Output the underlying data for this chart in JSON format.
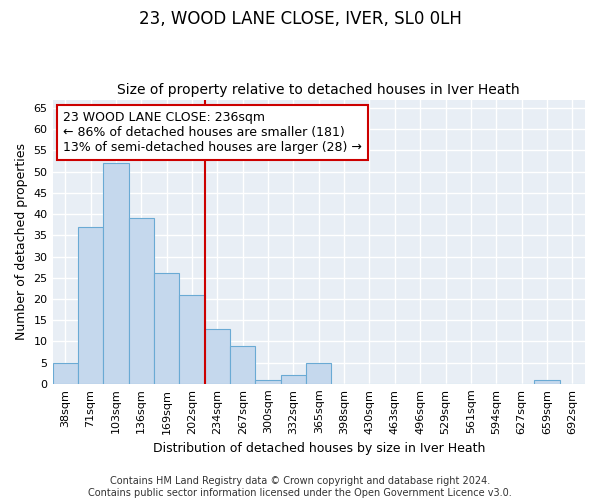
{
  "title": "23, WOOD LANE CLOSE, IVER, SL0 0LH",
  "subtitle": "Size of property relative to detached houses in Iver Heath",
  "xlabel": "Distribution of detached houses by size in Iver Heath",
  "ylabel": "Number of detached properties",
  "footer_line1": "Contains HM Land Registry data © Crown copyright and database right 2024.",
  "footer_line2": "Contains public sector information licensed under the Open Government Licence v3.0.",
  "categories": [
    "38sqm",
    "71sqm",
    "103sqm",
    "136sqm",
    "169sqm",
    "202sqm",
    "234sqm",
    "267sqm",
    "300sqm",
    "332sqm",
    "365sqm",
    "398sqm",
    "430sqm",
    "463sqm",
    "496sqm",
    "529sqm",
    "561sqm",
    "594sqm",
    "627sqm",
    "659sqm",
    "692sqm"
  ],
  "values": [
    5,
    37,
    52,
    39,
    26,
    21,
    13,
    9,
    1,
    2,
    5,
    0,
    0,
    0,
    0,
    0,
    0,
    0,
    0,
    1,
    0
  ],
  "bar_color": "#c5d8ed",
  "bar_edge_color": "#6aaad4",
  "highlight_color": "#cc0000",
  "vline_x": 5.5,
  "annotation_text_line1": "23 WOOD LANE CLOSE: 236sqm",
  "annotation_text_line2": "← 86% of detached houses are smaller (181)",
  "annotation_text_line3": "13% of semi-detached houses are larger (28) →",
  "annotation_box_color": "#ffffff",
  "annotation_box_edge": "#cc0000",
  "ylim": [
    0,
    67
  ],
  "yticks": [
    0,
    5,
    10,
    15,
    20,
    25,
    30,
    35,
    40,
    45,
    50,
    55,
    60,
    65
  ],
  "fig_background": "#ffffff",
  "plot_background": "#e8eef5",
  "grid_color": "#ffffff",
  "title_fontsize": 12,
  "subtitle_fontsize": 10,
  "axis_label_fontsize": 9,
  "tick_fontsize": 8,
  "annotation_fontsize": 9,
  "footer_fontsize": 7
}
